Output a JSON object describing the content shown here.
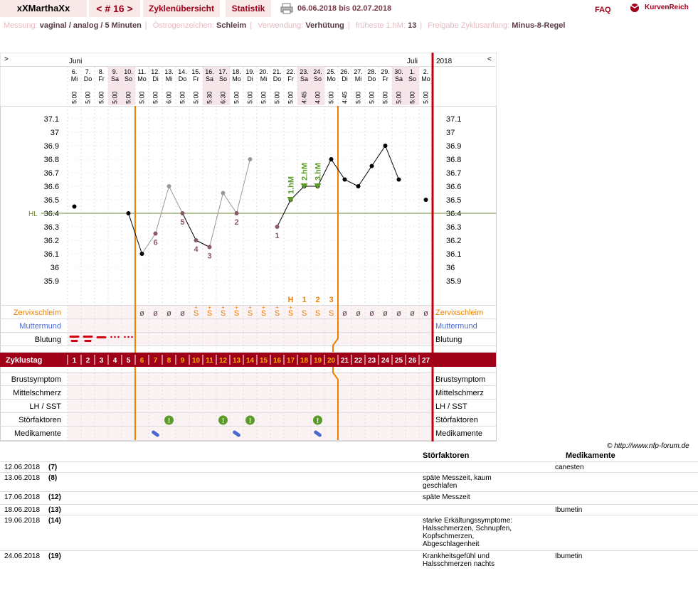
{
  "header": {
    "username": "xXMarthaXx",
    "cycle_label": "< # 16 >",
    "tab_overview": "Zyklenübersicht",
    "tab_stats": "Statistik",
    "daterange": "06.06.2018 bis 02.07.2018",
    "faq": "FAQ",
    "brand": "KurvenReich"
  },
  "info": [
    {
      "label": "Messung:",
      "value": "vaginal / analog / 5 Minuten"
    },
    {
      "label": "Östrogenzeichen:",
      "value": "Schleim"
    },
    {
      "label": "Verwendung:",
      "value": "Verhütung"
    },
    {
      "label": "früheste 1.hM:",
      "value": "13"
    },
    {
      "label": "Freigabe Zyklusanfang:",
      "value": "Minus-8-Regel"
    }
  ],
  "colors": {
    "accent": "#a00018",
    "orange": "#f08000",
    "hl": "#6a8a30",
    "green": "#5a8a30"
  },
  "chart_data": {
    "type": "line",
    "year": "2018",
    "months": [
      {
        "label": "Juni",
        "index": 0
      },
      {
        "label": "Juli",
        "index": 25
      }
    ],
    "dates": [
      "6.",
      "7.",
      "8.",
      "9.",
      "10.",
      "11.",
      "12.",
      "13.",
      "14.",
      "15.",
      "16.",
      "17.",
      "18.",
      "19.",
      "20.",
      "21.",
      "22.",
      "23.",
      "24.",
      "25.",
      "26.",
      "27.",
      "28.",
      "29.",
      "30.",
      "1.",
      "2."
    ],
    "weekdays": [
      "Mi",
      "Do",
      "Fr",
      "Sa",
      "So",
      "Mo",
      "Di",
      "Mi",
      "Do",
      "Fr",
      "Sa",
      "So",
      "Mo",
      "Di",
      "Mi",
      "Do",
      "Fr",
      "Sa",
      "So",
      "Mo",
      "Di",
      "Mi",
      "Do",
      "Fr",
      "Sa",
      "So",
      "Mo"
    ],
    "times": [
      "5:00",
      "5:00",
      "5:00",
      "5:00",
      "5:00",
      "5:00",
      "5:00",
      "6:00",
      "5:00",
      "5:00",
      "5:30",
      "6:30",
      "5:00",
      "5:00",
      "5:00",
      "5:00",
      "5:00",
      "4:45",
      "4:00",
      "5:00",
      "4:45",
      "5:00",
      "5:00",
      "5:00",
      "5:00",
      "5:00",
      "5:00"
    ],
    "weekend_days": [
      3,
      4,
      10,
      11,
      17,
      18,
      24,
      25
    ],
    "ylim": [
      35.8,
      37.2
    ],
    "yticks": [
      "37.1",
      "37",
      "36.9",
      "36.8",
      "36.7",
      "36.6",
      "36.5",
      "36.4",
      "36.3",
      "36.2",
      "36.1",
      "36",
      "35.9"
    ],
    "hl_label": "HL",
    "hl_value": 36.4,
    "temperatures": [
      36.45,
      null,
      null,
      null,
      36.4,
      36.1,
      36.25,
      36.6,
      36.4,
      36.2,
      36.15,
      36.55,
      36.4,
      36.8,
      null,
      36.3,
      36.5,
      36.6,
      36.6,
      36.8,
      36.65,
      36.6,
      36.75,
      36.9,
      36.65,
      null,
      36.5
    ],
    "excluded": [
      6,
      7,
      8,
      9,
      10,
      11,
      12,
      13,
      15
    ],
    "point_labels": [
      {
        "day": 6,
        "label": "6"
      },
      {
        "day": 8,
        "label": "5"
      },
      {
        "day": 9,
        "label": "4"
      },
      {
        "day": 10,
        "label": "3"
      },
      {
        "day": 12,
        "label": "2"
      },
      {
        "day": 15,
        "label": "1"
      }
    ],
    "hm_labels": [
      {
        "day": 16,
        "label": "1.hM"
      },
      {
        "day": 17,
        "label": "2.hM"
      },
      {
        "day": 18,
        "label": "3.hM"
      }
    ],
    "mucus_counts": [
      {
        "day": 16,
        "label": "H"
      },
      {
        "day": 17,
        "label": "1"
      },
      {
        "day": 18,
        "label": "2"
      },
      {
        "day": 19,
        "label": "3"
      }
    ],
    "cycle_days": [
      "1",
      "2",
      "3",
      "4",
      "5",
      "6",
      "7",
      "8",
      "9",
      "10",
      "11",
      "12",
      "13",
      "14",
      "15",
      "16",
      "17",
      "18",
      "19",
      "20",
      "21",
      "22",
      "23",
      "24",
      "25",
      "26",
      "27"
    ],
    "mucus": [
      "",
      "",
      "",
      "",
      "",
      "ø",
      "ø",
      "ø",
      "ø",
      "S+",
      "S+",
      "S+",
      "S+",
      "S+",
      "S+",
      "S+",
      "S+",
      "S",
      "S",
      "S",
      "ø",
      "ø",
      "ø",
      "ø",
      "ø",
      "ø",
      "ø"
    ],
    "bleeding": [
      3,
      3,
      2,
      1,
      1,
      0,
      0,
      0,
      0,
      0,
      0,
      0,
      0,
      0,
      0,
      0,
      0,
      0,
      0,
      0,
      0,
      0,
      0,
      0,
      0,
      0,
      0
    ],
    "disturbance_days": [
      7,
      11,
      13,
      18
    ],
    "medication_days": [
      6,
      12,
      18
    ],
    "row_labels": {
      "mucus": "Zervixschleim",
      "cervix": "Muttermund",
      "bleeding": "Blutung",
      "cycle": "Zyklustag",
      "breast": "Brustsymptom",
      "mittel": "Mittelschmerz",
      "lh": "LH / SST",
      "disturb": "Störfaktoren",
      "meds": "Medikamente"
    }
  },
  "notes": {
    "credit": "© http://www.nfp-forum.de",
    "col_disturb": "Störfaktoren",
    "col_meds": "Medikamente",
    "rows": [
      {
        "date": "12.06.2018",
        "num": "(7)",
        "disturb": "",
        "meds": "canesten"
      },
      {
        "date": "13.06.2018",
        "num": "(8)",
        "disturb": "späte Messzeit, kaum geschlafen",
        "meds": ""
      },
      {
        "date": "17.06.2018",
        "num": "(12)",
        "disturb": "späte Messzeit",
        "meds": ""
      },
      {
        "date": "18.06.2018",
        "num": "(13)",
        "disturb": "",
        "meds": "Ibumetin"
      },
      {
        "date": "19.06.2018",
        "num": "(14)",
        "disturb": "starke Erkältungssymptome: Halsschmerzen, Schnupfen, Kopfschmerzen, Abgeschlagenheit",
        "meds": ""
      },
      {
        "date": "24.06.2018",
        "num": "(19)",
        "disturb": "Krankheitsgefühl und Halsschmerzen nachts",
        "meds": "Ibumetin"
      }
    ]
  }
}
